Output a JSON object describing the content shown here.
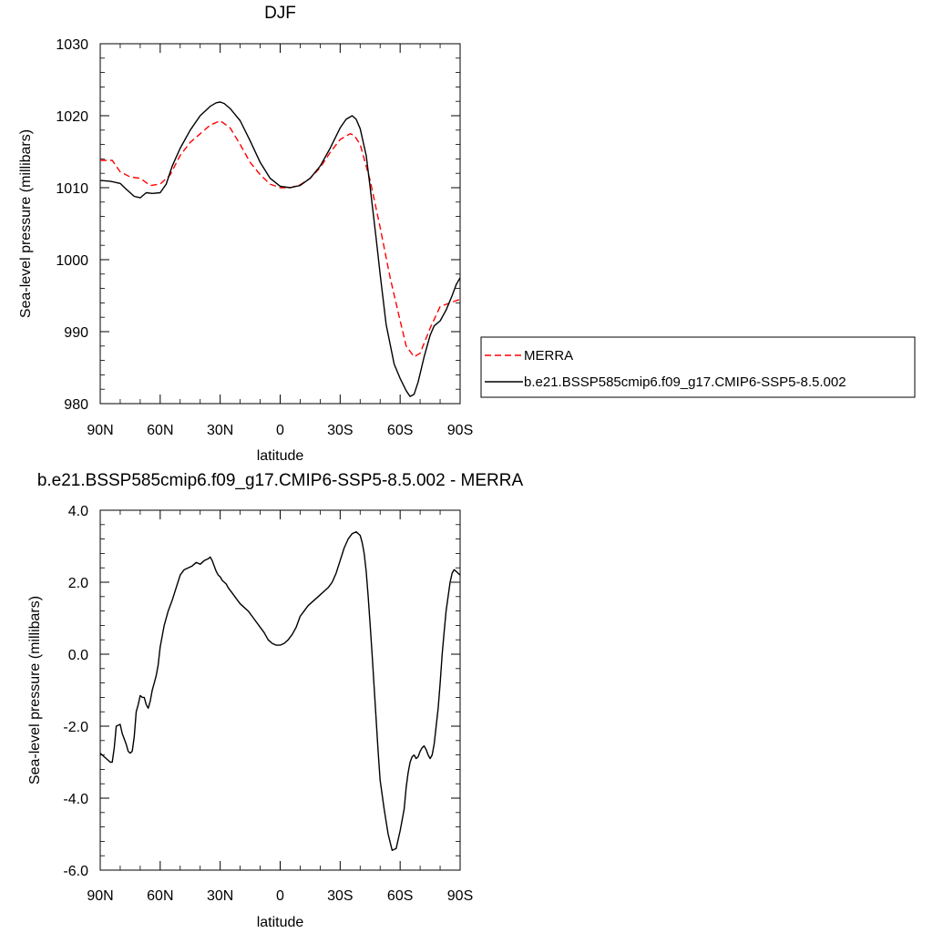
{
  "figure": {
    "domain": "Chart"
  },
  "chart_data": [
    {
      "type": "line",
      "title": "DJF",
      "xlabel": "latitude",
      "ylabel": "Sea-level pressure (millibars)",
      "xlim": [
        -90,
        90
      ],
      "ylim": [
        980,
        1030
      ],
      "x_ticks": [
        -90,
        -60,
        -30,
        0,
        30,
        60,
        90
      ],
      "x_tick_labels": [
        "90N",
        "60N",
        "30N",
        "0",
        "30S",
        "60S",
        "90S"
      ],
      "y_ticks": [
        980,
        990,
        1000,
        1010,
        1020,
        1030
      ],
      "y_tick_labels": [
        "980",
        "990",
        "1000",
        "1010",
        "1020",
        "1030"
      ],
      "grid": false,
      "legend": {
        "placement": "outside-right",
        "entries": [
          "MERRA",
          "b.e21.BSSP585cmip6.f09_g17.CMIP6-SSP5-8.5.002"
        ]
      },
      "series": [
        {
          "name": "MERRA",
          "color": "#ff0000",
          "style": "dashed",
          "x": [
            -90,
            -84,
            -80,
            -75,
            -70,
            -65,
            -60,
            -55,
            -50,
            -45,
            -40,
            -35,
            -30,
            -25,
            -20,
            -15,
            -10,
            -5,
            0,
            5,
            10,
            15,
            20,
            25,
            30,
            35,
            37,
            40,
            45,
            50,
            55,
            60,
            63,
            67,
            70,
            75,
            80,
            85,
            90
          ],
          "y": [
            1013.8,
            1013.8,
            1012.2,
            1011.5,
            1011.3,
            1010.3,
            1010.5,
            1011.8,
            1014.5,
            1016.3,
            1017.5,
            1018.7,
            1019.3,
            1018.3,
            1016.0,
            1013.5,
            1011.8,
            1010.5,
            1010.0,
            1010.0,
            1010.4,
            1011.3,
            1012.8,
            1014.9,
            1016.7,
            1017.5,
            1017.3,
            1016.0,
            1011.0,
            1004.5,
            997.5,
            991.5,
            988.0,
            986.5,
            987.0,
            990.5,
            993.5,
            994.0,
            994.5
          ]
        },
        {
          "name": "b.e21.BSSP585cmip6.f09_g17.CMIP6-SSP5-8.5.002",
          "color": "#000000",
          "style": "solid",
          "x": [
            -90,
            -85,
            -80,
            -77,
            -73,
            -70,
            -67,
            -64,
            -60,
            -57,
            -54,
            -50,
            -45,
            -40,
            -35,
            -32,
            -30,
            -28,
            -25,
            -20,
            -15,
            -10,
            -5,
            0,
            5,
            10,
            15,
            20,
            25,
            30,
            33,
            36,
            38,
            40,
            43,
            45,
            48,
            50,
            53,
            57,
            60,
            63,
            65,
            67,
            69,
            72,
            75,
            77,
            80,
            83,
            86,
            88,
            90
          ],
          "y": [
            1011.0,
            1010.9,
            1010.6,
            1009.8,
            1008.8,
            1008.6,
            1009.3,
            1009.2,
            1009.3,
            1010.5,
            1013.0,
            1015.5,
            1018.0,
            1020.0,
            1021.3,
            1021.8,
            1021.9,
            1021.7,
            1021.0,
            1019.3,
            1016.5,
            1013.5,
            1011.3,
            1010.2,
            1010.0,
            1010.3,
            1011.3,
            1013.0,
            1015.5,
            1018.3,
            1019.5,
            1020.0,
            1019.5,
            1018.2,
            1014.5,
            1010.0,
            1003.0,
            998.0,
            991.0,
            985.5,
            983.5,
            981.8,
            981.0,
            981.3,
            983.0,
            986.5,
            989.5,
            990.8,
            991.5,
            993.0,
            995.0,
            996.5,
            997.5
          ]
        }
      ]
    },
    {
      "type": "line",
      "title": "b.e21.BSSP585cmip6.f09_g17.CMIP6-SSP5-8.5.002 - MERRA",
      "xlabel": "latitude",
      "ylabel": "Sea-level pressure (millibars)",
      "xlim": [
        -90,
        90
      ],
      "ylim": [
        -6,
        4
      ],
      "x_ticks": [
        -90,
        -60,
        -30,
        0,
        30,
        60,
        90
      ],
      "x_tick_labels": [
        "90N",
        "60N",
        "30N",
        "0",
        "30S",
        "60S",
        "90S"
      ],
      "y_ticks": [
        -6,
        -4,
        -2,
        0,
        2,
        4
      ],
      "y_tick_labels": [
        "-6.0",
        "-4.0",
        "-2.0",
        "0.0",
        "2.0",
        "4.0"
      ],
      "grid": false,
      "series": [
        {
          "color": "#000000",
          "style": "solid",
          "x": [
            -90,
            -88,
            -86,
            -85,
            -84,
            -83,
            -82,
            -80,
            -79,
            -77,
            -76,
            -75,
            -74,
            -73,
            -72,
            -71,
            -70,
            -69,
            -68,
            -67,
            -66,
            -65,
            -64,
            -63,
            -62,
            -61,
            -60,
            -58,
            -56,
            -54,
            -52,
            -50,
            -48,
            -46,
            -44,
            -42,
            -40,
            -38,
            -36,
            -35,
            -34,
            -33,
            -32,
            -31,
            -30,
            -29,
            -28,
            -27,
            -26,
            -24,
            -22,
            -20,
            -18,
            -16,
            -14,
            -12,
            -10,
            -8,
            -6,
            -4,
            -2,
            0,
            2,
            4,
            6,
            8,
            10,
            12,
            14,
            16,
            18,
            20,
            22,
            24,
            26,
            28,
            30,
            32,
            34,
            36,
            38,
            40,
            41,
            42,
            43,
            44,
            45,
            46,
            47,
            48,
            49,
            50,
            52,
            54,
            56,
            58,
            60,
            62,
            63,
            64,
            65,
            66,
            67,
            68,
            69,
            70,
            71,
            72,
            73,
            74,
            75,
            76,
            77,
            78,
            79,
            80,
            81,
            82,
            83,
            84,
            85,
            86,
            87,
            88,
            89,
            90
          ],
          "y": [
            -2.75,
            -2.85,
            -2.95,
            -3.0,
            -3.0,
            -2.6,
            -2.0,
            -1.95,
            -2.2,
            -2.5,
            -2.7,
            -2.75,
            -2.7,
            -2.3,
            -1.6,
            -1.4,
            -1.15,
            -1.2,
            -1.2,
            -1.4,
            -1.5,
            -1.3,
            -1.0,
            -0.8,
            -0.6,
            -0.3,
            0.2,
            0.8,
            1.2,
            1.5,
            1.85,
            2.2,
            2.35,
            2.4,
            2.45,
            2.55,
            2.5,
            2.6,
            2.65,
            2.7,
            2.6,
            2.45,
            2.3,
            2.2,
            2.15,
            2.05,
            2.0,
            1.95,
            1.85,
            1.7,
            1.55,
            1.4,
            1.3,
            1.2,
            1.05,
            0.9,
            0.75,
            0.6,
            0.4,
            0.3,
            0.25,
            0.25,
            0.3,
            0.4,
            0.55,
            0.75,
            1.05,
            1.2,
            1.35,
            1.45,
            1.55,
            1.65,
            1.75,
            1.85,
            2.0,
            2.25,
            2.6,
            2.95,
            3.2,
            3.35,
            3.4,
            3.3,
            3.1,
            2.8,
            2.3,
            1.6,
            0.8,
            0.0,
            -0.9,
            -1.8,
            -2.7,
            -3.5,
            -4.3,
            -5.0,
            -5.45,
            -5.4,
            -4.9,
            -4.3,
            -3.7,
            -3.3,
            -3.0,
            -2.85,
            -2.8,
            -2.9,
            -2.85,
            -2.7,
            -2.6,
            -2.55,
            -2.65,
            -2.8,
            -2.9,
            -2.8,
            -2.5,
            -2.0,
            -1.5,
            -0.8,
            0.0,
            0.6,
            1.2,
            1.6,
            2.0,
            2.25,
            2.35,
            2.3,
            2.25,
            2.2
          ]
        }
      ]
    }
  ]
}
